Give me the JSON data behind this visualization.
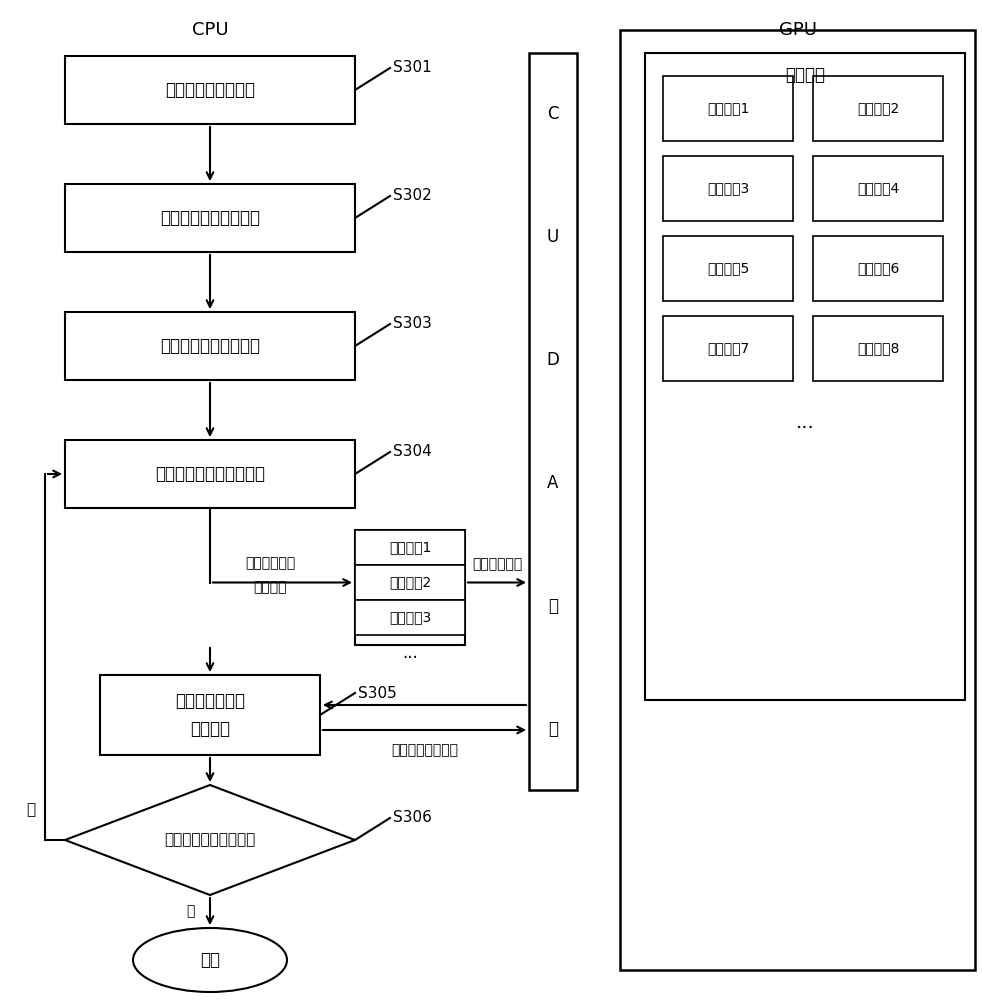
{
  "title_cpu": "CPU",
  "title_gpu": "GPU",
  "bg_color": "#ffffff",
  "compute_units": [
    "计算单元1",
    "计算单元2",
    "计算单元3",
    "计算单元4",
    "计算单元5",
    "计算单元6",
    "计算单元7",
    "计算单元8"
  ],
  "atom_tasks": [
    "原子任务1",
    "原子任务2",
    "原子任务3"
  ],
  "step_labels": [
    "S301",
    "S302",
    "S303",
    "S304",
    "S305",
    "S306"
  ],
  "box_labels": [
    "任务拆解成原子任务",
    "维护原子任务调用关系",
    "记录原子任务执行状态",
    "构建无依赖原子任务集合",
    "监听原子任务的\n执行状态",
    "判断任务是否均已完成",
    "结束"
  ],
  "queue_label_line1": "按照一定顺序",
  "queue_label_line2": "推送队列",
  "invoke_label": "调起线程执行",
  "monitor_label": "监听任务执行情况",
  "cuda_label": "C\nU\nD\nA\n接\n口",
  "compute_matrix_label": "计算矩阵",
  "yes_label": "是",
  "no_label": "否"
}
